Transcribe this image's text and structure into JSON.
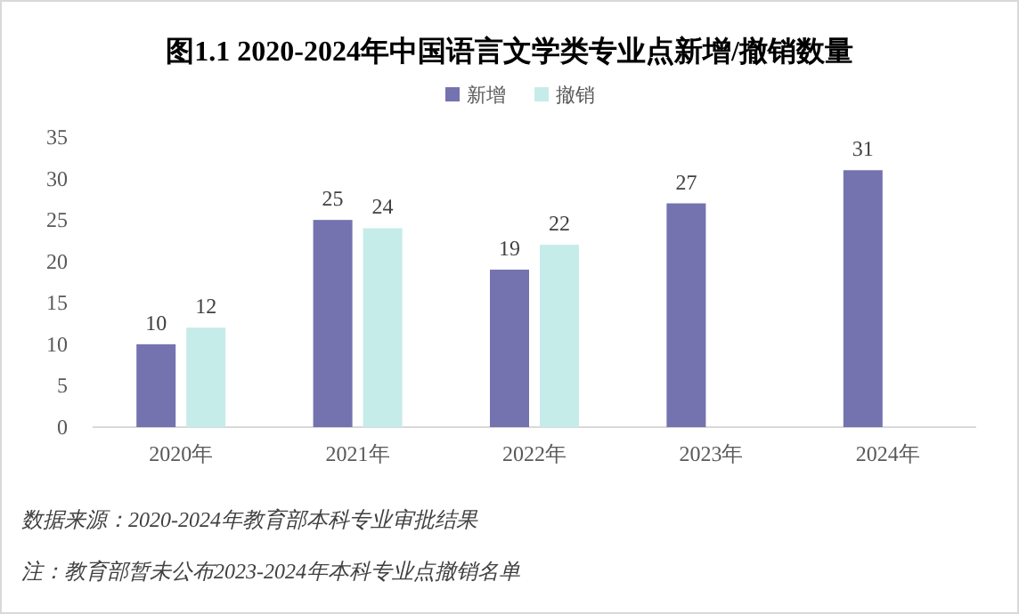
{
  "chart_data": {
    "type": "bar",
    "title": "图1.1  2020-2024年中国语言文学类专业点新增/撤销数量",
    "categories": [
      "2020年",
      "2021年",
      "2022年",
      "2023年",
      "2024年"
    ],
    "series": [
      {
        "name": "新增",
        "color": "#7473b0",
        "values": [
          10,
          25,
          19,
          27,
          31
        ]
      },
      {
        "name": "撤销",
        "color": "#c6ece9",
        "values": [
          12,
          24,
          22,
          null,
          null
        ]
      }
    ],
    "ylim": [
      0,
      35
    ],
    "yticks": [
      0,
      5,
      10,
      15,
      20,
      25,
      30,
      35
    ],
    "grid": false,
    "legend": "top",
    "data_labels": true,
    "annotations": [
      "数据来源：2020-2024年教育部本科专业审批结果",
      "注：教育部暂未公布2023-2024年本科专业点撤销名单"
    ]
  }
}
